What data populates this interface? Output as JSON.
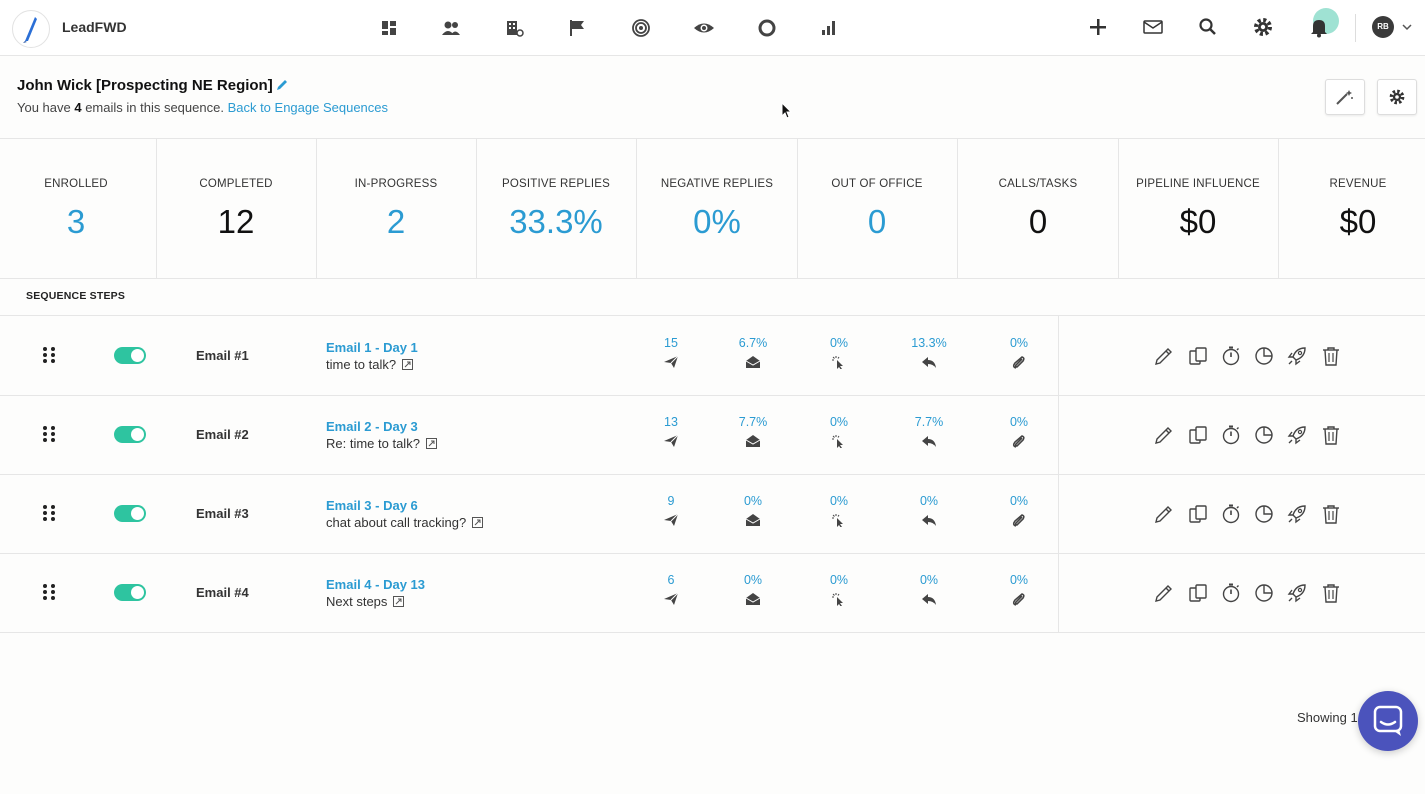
{
  "app": {
    "brand": "LeadFWD"
  },
  "topnav": {
    "icons": [
      "dashboard-icon",
      "contacts-icon",
      "companies-icon",
      "flag-icon",
      "target-icon",
      "eye-icon",
      "ring-icon",
      "bar-chart-icon"
    ],
    "right_icons": [
      "plus-icon",
      "mail-icon",
      "search-icon",
      "gear-icon",
      "bell-icon"
    ],
    "user_initials": "RB"
  },
  "sequence": {
    "title": "John Wick [Prospecting NE Region]",
    "subtitle_prefix": "You have ",
    "email_count": "4",
    "subtitle_suffix": " emails in this sequence. ",
    "back_link": "Back to Engage Sequences"
  },
  "stats": [
    {
      "label": "ENROLLED",
      "value": "3",
      "color": "#2b9bd2"
    },
    {
      "label": "COMPLETED",
      "value": "12",
      "color": "#111111"
    },
    {
      "label": "IN-PROGRESS",
      "value": "2",
      "color": "#2b9bd2"
    },
    {
      "label": "POSITIVE REPLIES",
      "value": "33.3%",
      "color": "#2b9bd2"
    },
    {
      "label": "NEGATIVE REPLIES",
      "value": "0%",
      "color": "#2b9bd2"
    },
    {
      "label": "OUT OF OFFICE",
      "value": "0",
      "color": "#2b9bd2"
    },
    {
      "label": "CALLS/TASKS",
      "value": "0",
      "color": "#111111"
    },
    {
      "label": "PIPELINE INFLUENCE",
      "value": "$0",
      "color": "#111111"
    },
    {
      "label": "REVENUE",
      "value": "$0",
      "color": "#111111"
    }
  ],
  "steps_label": "SEQUENCE STEPS",
  "steps": [
    {
      "name": "Email #1",
      "title": "Email 1 - Day 1",
      "subject": "time to talk?",
      "enabled": true,
      "metrics": {
        "sent": "15",
        "opened": "6.7%",
        "clicked": "0%",
        "replied": "13.3%",
        "attached": "0%"
      }
    },
    {
      "name": "Email #2",
      "title": "Email 2 - Day 3",
      "subject": "Re: time to talk?",
      "enabled": true,
      "metrics": {
        "sent": "13",
        "opened": "7.7%",
        "clicked": "0%",
        "replied": "7.7%",
        "attached": "0%"
      }
    },
    {
      "name": "Email #3",
      "title": "Email 3 - Day 6",
      "subject": "chat about call tracking?",
      "enabled": true,
      "metrics": {
        "sent": "9",
        "opened": "0%",
        "clicked": "0%",
        "replied": "0%",
        "attached": "0%"
      }
    },
    {
      "name": "Email #4",
      "title": "Email 4 - Day 13",
      "subject": "Next steps",
      "enabled": true,
      "metrics": {
        "sent": "6",
        "opened": "0%",
        "clicked": "0%",
        "replied": "0%",
        "attached": "0%"
      }
    }
  ],
  "metric_icons": [
    "send-icon",
    "open-envelope-icon",
    "click-icon",
    "reply-icon",
    "attachment-icon"
  ],
  "action_icons": [
    "edit-icon",
    "copy-icon",
    "timer-icon",
    "pie-chart-icon",
    "rocket-icon",
    "trash-icon"
  ],
  "footer": {
    "showing": "Showing 1"
  },
  "colors": {
    "accent": "#2b9bd2",
    "toggle": "#2ec4a0",
    "chat": "#4b53bc"
  }
}
